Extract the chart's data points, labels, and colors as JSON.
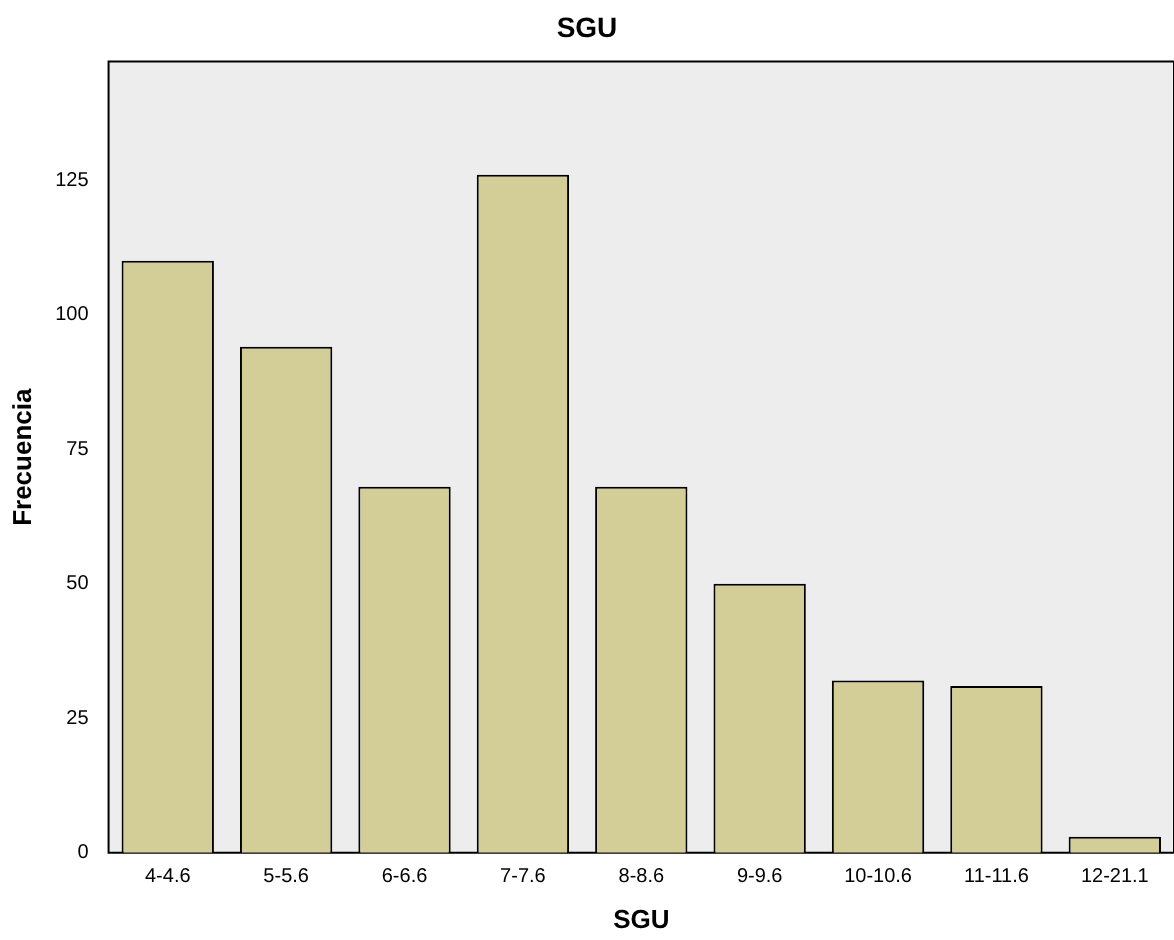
{
  "chart_data": {
    "type": "bar",
    "title": "SGU",
    "xlabel": "SGU",
    "ylabel": "Frecuencia",
    "categories": [
      "4-4.6",
      "5-5.6",
      "6-6.6",
      "7-7.6",
      "8-8.6",
      "9-9.6",
      "10-10.6",
      "11-11.6",
      "12-21.1"
    ],
    "values": [
      110,
      94,
      68,
      126,
      68,
      50,
      32,
      31,
      3
    ],
    "color": "#d3ce98",
    "ylim": [
      0,
      147
    ],
    "yticks": [
      0,
      25,
      50,
      75,
      100,
      125
    ],
    "grid": false,
    "legend": false
  }
}
